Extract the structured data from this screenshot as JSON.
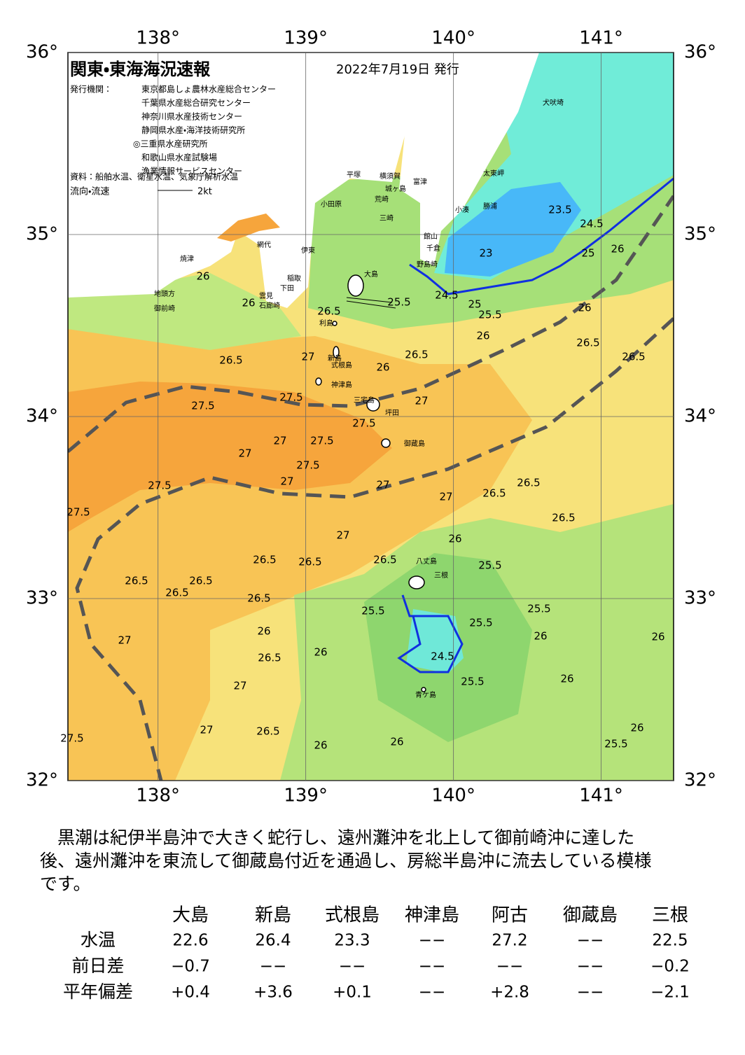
{
  "map": {
    "title": "関東・東海海況速報",
    "date": "2022年7月19日 発行",
    "issuer_label": "発行機関：",
    "issuers": [
      "東京都島しょ農林水産総合センター",
      "千葉県水産総合研究センター",
      "神奈川県水産技術センター",
      "静岡県水産・海洋技術研究所",
      "◎三重県水産研究所",
      "和歌山県水産試験場",
      "漁業情報サービスセンター"
    ],
    "source": "資料：船舶水温、衛星水温、気象庁解析水温",
    "flow_legend": "流向・流速",
    "flow_scale": "2kt",
    "lon_ticks": [
      {
        "value": 138,
        "label": "138°"
      },
      {
        "value": 139,
        "label": "139°"
      },
      {
        "value": 140,
        "label": "140°"
      },
      {
        "value": 141,
        "label": "141°"
      }
    ],
    "lat_ticks": [
      {
        "value": 36,
        "label": "36°"
      },
      {
        "value": 35,
        "label": "35°"
      },
      {
        "value": 34,
        "label": "34°"
      },
      {
        "value": 33,
        "label": "33°"
      },
      {
        "value": 32,
        "label": "32°"
      }
    ],
    "lonlim": [
      137.39,
      141.49
    ],
    "latlim": [
      32,
      36
    ],
    "places": [
      "大島",
      "利島",
      "新島",
      "式根島",
      "神津島",
      "三宅島",
      "坪田",
      "御蔵島",
      "八丈島",
      "三根",
      "青ケ島",
      "小田原",
      "平塚",
      "横須賀",
      "城ヶ島",
      "荒崎",
      "三崎",
      "富津",
      "館山",
      "千倉",
      "野島崎",
      "小湊",
      "勝浦",
      "太東岬",
      "犬吠埼",
      "網代",
      "伊東",
      "稲取",
      "雲見",
      "下田",
      "石廊崎",
      "焼津",
      "地頭方",
      "御前崎"
    ],
    "contour_labels": [
      26.5,
      25.5,
      26,
      26,
      24.5,
      25,
      25.5,
      26,
      26.5,
      26,
      26.5,
      26,
      25,
      24.5,
      23.5,
      23,
      26.5,
      27,
      26,
      26.5,
      27,
      27.5,
      27.5,
      27.5,
      27,
      27.5,
      27,
      27.5,
      27,
      27,
      27.5,
      27.5,
      27,
      26.5,
      26.5,
      26.5,
      27,
      26,
      26.5,
      26.5,
      26.5,
      26.5,
      26.5,
      26.5,
      26.5,
      25.5,
      25.5,
      25.5,
      25.5,
      26,
      26.5,
      26,
      24.5,
      26,
      26,
      25.5,
      27,
      26.5,
      26,
      26,
      25.5,
      27,
      27.5,
      27,
      26,
      26
    ]
  },
  "summary": {
    "lines": [
      "　黒潮は紀伊半島沖で大きく蛇行し、遠州灘沖を北上して御前崎沖に達した",
      "後、遠州灘沖を東流して御蔵島付近を通過し、房総半島沖に流去している模様",
      "です。"
    ]
  },
  "table": {
    "header": [
      "大島",
      "新島",
      "式根島",
      "神津島",
      "阿古",
      "御蔵島",
      "三根"
    ],
    "rows": [
      [
        "水温",
        "22.6",
        "26.4",
        "23.3",
        "−−",
        "27.2",
        "−−",
        "22.5"
      ],
      [
        "前日差",
        "−0.7",
        "−−",
        "−−",
        "−−",
        "−−",
        "−−",
        "−0.2"
      ],
      [
        "平年偏差",
        "+0.4",
        "+3.6",
        "+0.1",
        "−−",
        "+2.8",
        "−−",
        "−2.1"
      ]
    ]
  }
}
